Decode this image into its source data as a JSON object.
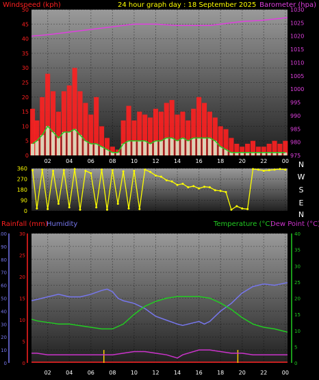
{
  "colors": {
    "wind": "#ff2020",
    "gust_outline": "#ff0000",
    "avg_wind": "#22cc22",
    "barometer": "#e040e0",
    "direction": "#ffff00",
    "humidity": "#7777ee",
    "temperature": "#22cc22",
    "dewpoint": "#cc33cc",
    "rain": "#ffcc00",
    "grid_top": "#9a9a9a",
    "grid_bottom": "#202020"
  },
  "chart_data": [
    {
      "type": "bar",
      "panel": "wind-barometer",
      "title": "24 hour graph day : 18 September 2025",
      "ylabel": "Windspeed (kph)",
      "y2label": "Barometer (hpa)",
      "x_ticks": [
        "02",
        "04",
        "06",
        "08",
        "10",
        "12",
        "14",
        "16",
        "18",
        "20",
        "22",
        "00"
      ],
      "x_range_hours": [
        0.5,
        24.2
      ],
      "ylim": [
        0,
        50
      ],
      "y_ticks": [
        "0",
        "5",
        "10",
        "15",
        "20",
        "25",
        "30",
        "35",
        "40",
        "45",
        "50"
      ],
      "y2lim": [
        975,
        1030
      ],
      "y2_ticks": [
        "975",
        "980",
        "985",
        "990",
        "995",
        "1000",
        "1005",
        "1010",
        "1015",
        "1020",
        "1025",
        "1030"
      ],
      "series": [
        {
          "name": "gust",
          "hours": [
            0.6,
            1.0,
            1.5,
            2.0,
            2.5,
            3.0,
            3.5,
            4.0,
            4.5,
            5.0,
            5.5,
            6.0,
            6.5,
            7.0,
            7.5,
            8.0,
            8.5,
            9.0,
            9.5,
            10.0,
            10.5,
            11.0,
            11.5,
            12.0,
            12.5,
            13.0,
            13.5,
            14.0,
            14.5,
            15.0,
            15.5,
            16.0,
            16.5,
            17.0,
            17.5,
            18.0,
            18.5,
            19.0,
            19.5,
            20.0,
            20.5,
            21.0,
            21.5,
            22.0,
            22.5,
            23.0,
            23.5,
            24.0
          ],
          "values": [
            16,
            12,
            20,
            28,
            22,
            15,
            22,
            24,
            30,
            22,
            18,
            14,
            20,
            10,
            6,
            3,
            2,
            12,
            17,
            12,
            15,
            14,
            13,
            16,
            15,
            18,
            19,
            14,
            15,
            12,
            16,
            20,
            18,
            15,
            13,
            10,
            9,
            6,
            4,
            3,
            4,
            5,
            3,
            3,
            4,
            5,
            4,
            5
          ]
        },
        {
          "name": "average",
          "hours": [
            0.6,
            1.0,
            1.5,
            2.0,
            2.5,
            3.0,
            3.5,
            4.0,
            4.5,
            5.0,
            5.5,
            6.0,
            6.5,
            7.0,
            7.5,
            8.0,
            8.5,
            9.0,
            9.5,
            10.0,
            10.5,
            11.0,
            11.5,
            12.0,
            12.5,
            13.0,
            13.5,
            14.0,
            14.5,
            15.0,
            15.5,
            16.0,
            16.5,
            17.0,
            17.5,
            18.0,
            18.5,
            19.0,
            19.5,
            20.0,
            20.5,
            21.0,
            21.5,
            22.0,
            22.5,
            23.0,
            23.5,
            24.0
          ],
          "values": [
            4,
            5,
            7,
            10,
            8,
            6,
            8,
            8,
            9,
            7,
            5,
            4,
            4,
            3,
            2,
            1,
            1,
            4,
            5,
            5,
            5,
            5,
            4,
            5,
            5,
            6,
            6,
            5,
            6,
            5,
            6,
            6,
            6,
            6,
            5,
            3,
            2,
            1,
            1,
            1,
            1,
            1,
            1,
            1,
            1,
            1,
            1,
            1
          ]
        },
        {
          "name": "barometer",
          "hours": [
            0.5,
            2.0,
            4.0,
            6.0,
            8.0,
            10.0,
            12.0,
            14.0,
            16.0,
            17.0,
            18.0,
            20.0,
            22.0,
            24.2
          ],
          "values": [
            1020.0,
            1020.5,
            1021.5,
            1022.5,
            1023.5,
            1024.5,
            1024.5,
            1024.0,
            1024.0,
            1024.0,
            1024.5,
            1025.5,
            1026.0,
            1027.0
          ]
        }
      ]
    },
    {
      "type": "scatter",
      "panel": "wind-direction",
      "ylim": [
        0,
        360
      ],
      "y_ticks": [
        "0",
        "90",
        "180",
        "270",
        "360"
      ],
      "right_labels": [
        "N",
        "W",
        "S",
        "E",
        "N"
      ],
      "series": [
        {
          "name": "direction",
          "hours": [
            0.6,
            1.0,
            1.5,
            2.0,
            2.5,
            3.0,
            3.5,
            4.0,
            4.5,
            5.0,
            5.5,
            6.0,
            6.5,
            7.0,
            7.5,
            8.0,
            8.5,
            9.0,
            9.5,
            10.0,
            10.5,
            11.0,
            11.5,
            12.0,
            12.5,
            13.0,
            13.5,
            14.0,
            14.5,
            15.0,
            15.5,
            16.0,
            16.5,
            17.0,
            17.5,
            18.0,
            18.5,
            19.0,
            19.5,
            20.0,
            20.5,
            21.0,
            21.5,
            22.0,
            22.5,
            23.0,
            23.5,
            24.0
          ],
          "values": [
            345,
            20,
            350,
            15,
            340,
            60,
            345,
            30,
            355,
            10,
            340,
            320,
            30,
            350,
            10,
            345,
            60,
            335,
            20,
            340,
            15,
            350,
            330,
            300,
            290,
            260,
            250,
            220,
            230,
            200,
            210,
            190,
            205,
            200,
            175,
            170,
            160,
            10,
            40,
            20,
            15,
            355,
            350,
            340,
            345,
            350,
            355,
            350
          ]
        }
      ]
    },
    {
      "type": "line",
      "panel": "temperature-humidity",
      "ylabel": "Rainfall (mm)",
      "ylabel2": "Humidity",
      "y2label": "Temperature (°C)",
      "y2label2": "Dew Point (°C)",
      "humidity_lim": [
        0,
        100
      ],
      "humidity_ticks": [
        "0",
        "10",
        "20",
        "30",
        "40",
        "50",
        "60",
        "70",
        "80",
        "90",
        "100"
      ],
      "rain_lim": [
        0,
        30
      ],
      "rain_ticks": [
        "0",
        "5",
        "10",
        "15",
        "20",
        "25",
        "30"
      ],
      "temp_lim": [
        0,
        40
      ],
      "temp_ticks": [
        "0",
        "5",
        "10",
        "15",
        "20",
        "25",
        "30",
        "35",
        "40"
      ],
      "series": [
        {
          "name": "Humidity",
          "hours": [
            0.5,
            1.0,
            2.0,
            3.0,
            4.0,
            5.0,
            6.0,
            7.0,
            7.5,
            8.0,
            8.5,
            9.0,
            10.0,
            11.0,
            12.0,
            13.0,
            14.0,
            14.5,
            15.0,
            16.0,
            16.5,
            17.0,
            17.5,
            18.0,
            19.0,
            20.0,
            21.0,
            22.0,
            23.0,
            24.2
          ],
          "values": [
            48,
            49,
            51,
            53,
            51,
            51,
            53,
            56,
            57,
            55,
            50,
            48,
            46,
            42,
            36,
            33,
            30,
            29,
            30,
            32,
            30,
            32,
            36,
            40,
            46,
            54,
            59,
            61,
            60,
            62
          ]
        },
        {
          "name": "Temperature",
          "hours": [
            0.5,
            1.0,
            2.0,
            3.0,
            4.0,
            5.0,
            6.0,
            7.0,
            8.0,
            9.0,
            10.0,
            11.0,
            12.0,
            13.0,
            14.0,
            15.0,
            16.0,
            17.0,
            18.0,
            19.0,
            20.0,
            21.0,
            22.0,
            23.0,
            24.2
          ],
          "values": [
            13.5,
            13,
            12.5,
            12,
            12,
            11.5,
            11,
            10.5,
            10.5,
            12,
            15,
            17.5,
            19,
            20,
            20.5,
            20.5,
            20.5,
            20,
            18.5,
            16.5,
            14,
            12,
            11,
            10.5,
            9.5
          ]
        },
        {
          "name": "Dew Point",
          "hours": [
            0.5,
            1.0,
            2.0,
            3.0,
            4.0,
            5.0,
            6.0,
            7.0,
            8.0,
            9.0,
            10.0,
            11.0,
            12.0,
            13.0,
            13.5,
            14.0,
            14.5,
            15.0,
            16.0,
            17.0,
            18.0,
            19.0,
            20.0,
            21.0,
            22.0,
            23.0,
            24.2
          ],
          "values": [
            3,
            3,
            2.5,
            2.5,
            2.5,
            2.5,
            2.5,
            2.5,
            2.5,
            3,
            3.5,
            3.5,
            3,
            2.5,
            2,
            1.5,
            2.5,
            3,
            4,
            4,
            3.5,
            3,
            3,
            2.5,
            2.5,
            2.5,
            2.5
          ]
        },
        {
          "name": "Rainfall",
          "hours": [
            7.2,
            19.6
          ],
          "values": [
            3,
            3
          ]
        }
      ]
    }
  ]
}
